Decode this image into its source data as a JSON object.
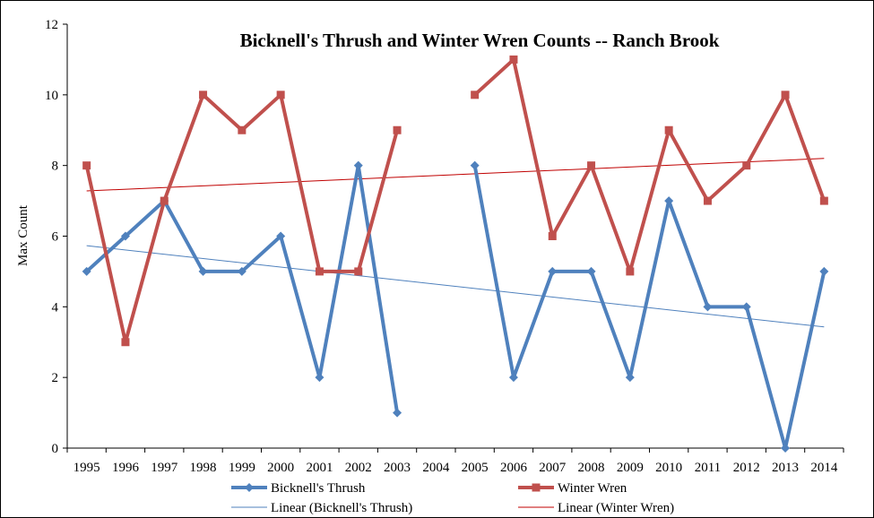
{
  "chart_data": {
    "type": "line",
    "title": "Bicknell's Thrush and Winter Wren Counts -- Ranch Brook",
    "xlabel": "",
    "ylabel": "Max Count",
    "ylim": [
      0,
      12
    ],
    "yticks": [
      0,
      2,
      4,
      6,
      8,
      10,
      12
    ],
    "categories": [
      "1995",
      "1996",
      "1997",
      "1998",
      "1999",
      "2000",
      "2001",
      "2002",
      "2003",
      "2004",
      "2005",
      "2006",
      "2007",
      "2008",
      "2009",
      "2010",
      "2011",
      "2012",
      "2013",
      "2014"
    ],
    "series": [
      {
        "name": "Bicknell's Thrush",
        "color": "#4f81bd",
        "marker": "diamond",
        "values": [
          5,
          6,
          7,
          5,
          5,
          6,
          2,
          8,
          1,
          null,
          8,
          2,
          5,
          5,
          2,
          7,
          4,
          4,
          0,
          5
        ]
      },
      {
        "name": "Winter Wren",
        "color": "#c0504d",
        "marker": "square",
        "values": [
          8,
          3,
          7,
          10,
          9,
          10,
          5,
          5,
          9,
          null,
          10,
          11,
          6,
          8,
          5,
          9,
          7,
          8,
          10,
          7
        ]
      }
    ],
    "trendlines": [
      {
        "name": "Linear (Bicknell's Thrush)",
        "color": "#4f81bd",
        "start": 5.73,
        "end": 3.43
      },
      {
        "name": "Linear (Winter Wren)",
        "color": "#c00000",
        "start": 7.28,
        "end": 8.2
      }
    ],
    "grid": false,
    "legend": "bottom"
  }
}
